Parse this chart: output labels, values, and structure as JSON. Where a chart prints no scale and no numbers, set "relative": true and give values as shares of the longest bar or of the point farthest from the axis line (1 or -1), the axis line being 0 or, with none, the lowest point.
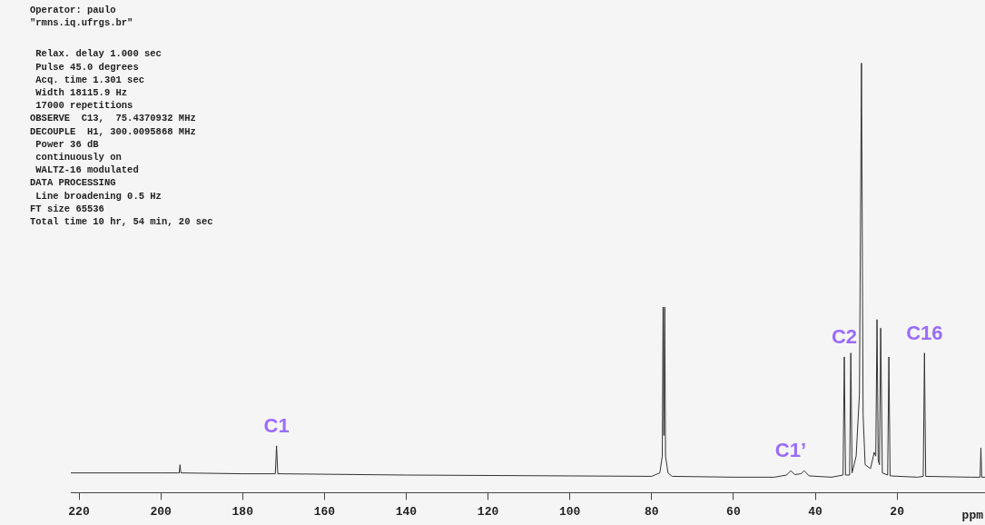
{
  "chart_data": {
    "type": "line",
    "relative": true,
    "xlabel": "ppm",
    "xlim": [
      222,
      -1.5
    ],
    "xticks": [
      220,
      200,
      180,
      160,
      140,
      120,
      100,
      80,
      60,
      40,
      20
    ],
    "tick_labels": "x",
    "grid": false,
    "legend": false,
    "series": [
      {
        "color": "#333333",
        "x": [
          222,
          200,
          196,
          195.5,
          195.3,
          195.1,
          180,
          172,
          171.7,
          171.4,
          140,
          100,
          80,
          78,
          77.4,
          77.2,
          77.0,
          76.8,
          76.6,
          76,
          75,
          60,
          50,
          47,
          46,
          45,
          43.5,
          42.7,
          41.5,
          36,
          33.2,
          32.9,
          32.6,
          31.6,
          31.3,
          31.0,
          30.0,
          29.2,
          28.7,
          28.3,
          27.8,
          26.5,
          25.8,
          25.6,
          25.2,
          24.9,
          24.6,
          24.3,
          24.0,
          23.6,
          22.3,
          22.0,
          21.7,
          15,
          13.6,
          13.3,
          13.0,
          2,
          -0.3,
          -0.5,
          -0.7,
          -1.5
        ],
        "values": [
          0.046,
          0.046,
          0.046,
          0.046,
          0.065,
          0.046,
          0.044,
          0.044,
          0.109,
          0.044,
          0.041,
          0.039,
          0.038,
          0.046,
          0.085,
          0.432,
          0.133,
          0.432,
          0.085,
          0.046,
          0.038,
          0.036,
          0.036,
          0.041,
          0.051,
          0.042,
          0.044,
          0.051,
          0.039,
          0.036,
          0.041,
          0.316,
          0.041,
          0.041,
          0.325,
          0.046,
          0.085,
          0.229,
          1,
          0.181,
          0.065,
          0.056,
          0.085,
          0.094,
          0.085,
          0.403,
          0.075,
          0.065,
          0.383,
          0.046,
          0.041,
          0.316,
          0.039,
          0.036,
          0.038,
          0.325,
          0.038,
          0.036,
          0.036,
          0.104,
          0.036,
          0.036
        ]
      }
    ],
    "annotations": [
      "Operator: paulo",
      "\"rmns.iq.ufrgs.br\"",
      " Relax. delay 1.000 sec",
      " Pulse 45.0 degrees",
      " Acq. time 1.301 sec",
      " Width 18115.9 Hz",
      " 17000 repetitions",
      "OBSERVE  C13,  75.4370932 MHz",
      "DECOUPLE  H1, 300.0095868 MHz",
      " Power 36 dB",
      " continuously on",
      " WALTZ-16 modulated",
      "DATA PROCESSING",
      " Line broadening 0.5 Hz",
      "FT size 65536",
      "Total time 10 hr, 54 min, 20 sec",
      {
        "text": "C1",
        "x": 171.7,
        "y": 0.109
      },
      {
        "text": "C1’",
        "x": 46,
        "y": 0.051
      },
      {
        "text": "C2",
        "x": 32.9,
        "y": 0.316
      },
      {
        "text": "C16",
        "x": 13.3,
        "y": 0.325
      }
    ]
  }
}
